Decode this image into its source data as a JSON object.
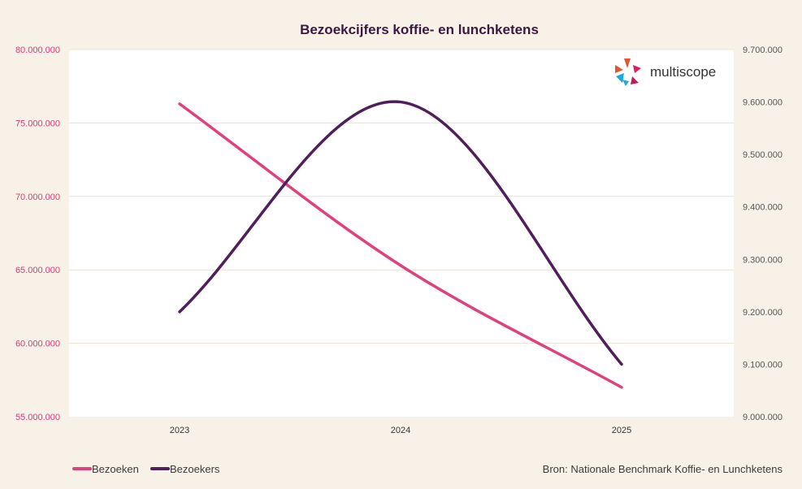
{
  "chart_data": {
    "type": "line",
    "title": "Bezoekcijfers koffie- en lunchketens",
    "categories": [
      "2023",
      "2024",
      "2025"
    ],
    "y_left": {
      "ylim": [
        55000000,
        80000000
      ],
      "ticks": [
        55000000,
        60000000,
        65000000,
        70000000,
        75000000,
        80000000
      ],
      "tick_labels": [
        "55.000.000",
        "60.000.000",
        "65.000.000",
        "70.000.000",
        "75.000.000",
        "80.000.000"
      ]
    },
    "y_right": {
      "ylim": [
        9000000,
        9700000
      ],
      "ticks": [
        9000000,
        9100000,
        9200000,
        9300000,
        9400000,
        9500000,
        9600000,
        9700000
      ],
      "tick_labels": [
        "9.000.000",
        "9.100.000",
        "9.200.000",
        "9.300.000",
        "9.400.000",
        "9.500.000",
        "9.600.000",
        "9.700.000"
      ]
    },
    "series": [
      {
        "name": "Bezoeken",
        "axis": "left",
        "color": "#e0407e",
        "values": [
          76300000,
          65300000,
          57000000
        ]
      },
      {
        "name": "Bezoekers",
        "axis": "right",
        "color": "#4e1f5a",
        "values": [
          9200000,
          9600000,
          9100000
        ]
      }
    ],
    "grid": true,
    "legend": "bottom-left"
  },
  "source": "Bron: Nationale Benchmark Koffie- en Lunchketens",
  "logo": {
    "text": "multiscope",
    "icon": "multiscope-logo-icon"
  }
}
